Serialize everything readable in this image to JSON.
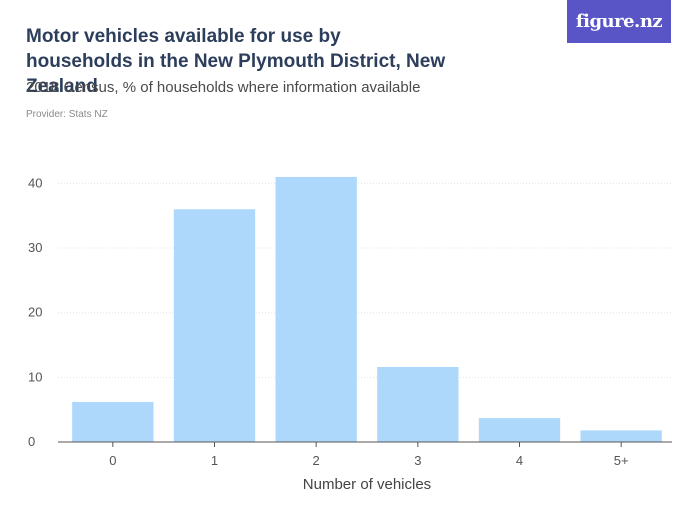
{
  "header": {
    "title": "Motor vehicles available for use by households in the New Plymouth District, New Zealand",
    "subtitle": "2018 Census, % of households where information available",
    "provider": "Provider: Stats NZ",
    "logo": "figure.nz"
  },
  "colors": {
    "bar": "#aed8fb",
    "grid": "#e3e3e3",
    "axis": "#555555",
    "logo_bg": "#5a55c7"
  },
  "chart_data": {
    "type": "bar",
    "title": "Motor vehicles available for use by households in the New Plymouth District, New Zealand",
    "subtitle": "2018 Census, % of households where information available",
    "categories": [
      "0",
      "1",
      "2",
      "3",
      "4",
      "5+"
    ],
    "values": [
      6.2,
      36.0,
      41.0,
      11.6,
      3.7,
      1.8
    ],
    "xlabel": "Number of vehicles",
    "ylabel": "",
    "ylim": [
      0,
      43
    ],
    "yticks": [
      0,
      10,
      20,
      30,
      40
    ],
    "grid": true,
    "legend": "none"
  }
}
